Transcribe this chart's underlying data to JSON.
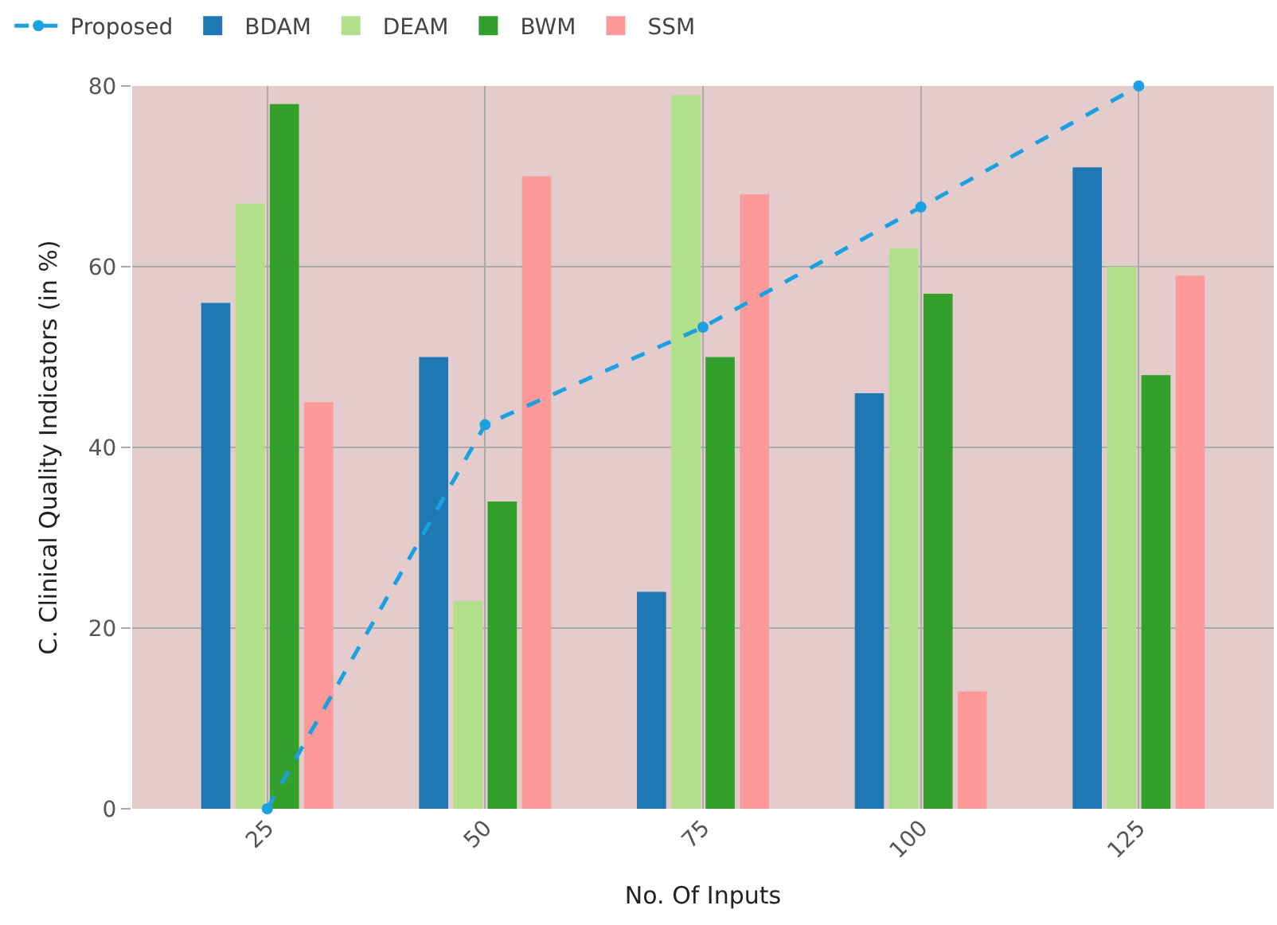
{
  "chart_data": {
    "type": "bar",
    "xlabel": "No. Of Inputs",
    "ylabel": "C. Clinical Quality Indicators (in %)",
    "categories": [
      "25",
      "50",
      "75",
      "100",
      "125"
    ],
    "series": [
      {
        "name": "Proposed",
        "type": "line",
        "color": "#1ba1e2",
        "values": [
          0,
          42.5,
          53.3,
          66.6,
          80
        ],
        "marker": "circle",
        "line_style": "dashed"
      },
      {
        "name": "BDAM",
        "color": "#1f77b4",
        "values": [
          56,
          50,
          24,
          46,
          71
        ]
      },
      {
        "name": "DEAM",
        "color": "#b2df8a",
        "values": [
          67,
          23,
          79,
          62,
          60
        ]
      },
      {
        "name": "BWM",
        "color": "#33a02c",
        "values": [
          78,
          34,
          50,
          57,
          48
        ]
      },
      {
        "name": "SSM",
        "color": "#fb9a99",
        "values": [
          45,
          70,
          68,
          13,
          59
        ]
      }
    ],
    "ylim": [
      0,
      80
    ],
    "yticks": [
      0,
      20,
      40,
      60,
      80
    ],
    "grid": true,
    "legend": "top left"
  }
}
